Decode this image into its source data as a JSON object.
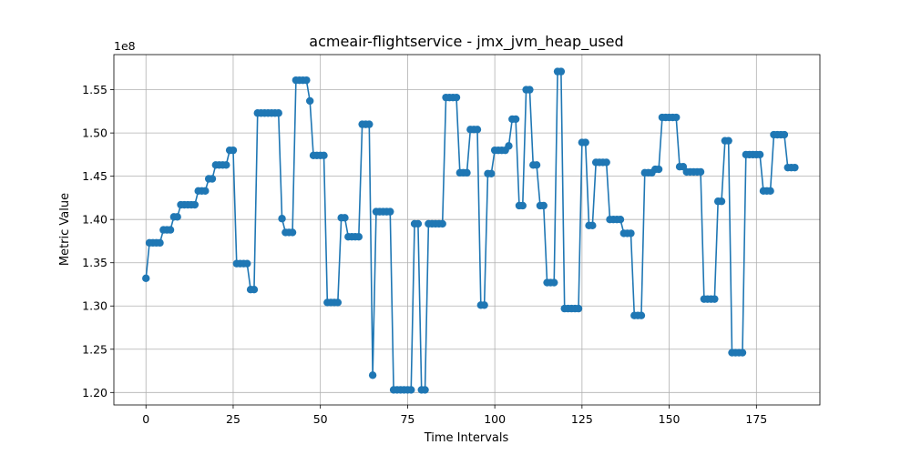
{
  "chart_data": {
    "type": "line",
    "title": "acmeair-flightservice - jmx_jvm_heap_used",
    "xlabel": "Time Intervals",
    "ylabel": "Metric Value",
    "offset_label": "1e8",
    "xlim": [
      -9.2,
      193.2
    ],
    "ylim": [
      1.1856,
      1.5906
    ],
    "xticks": [
      0,
      25,
      50,
      75,
      100,
      125,
      150,
      175
    ],
    "yticks": [
      1.2,
      1.25,
      1.3,
      1.35,
      1.4,
      1.45,
      1.5,
      1.55
    ],
    "ytick_labels": [
      "1.20",
      "1.25",
      "1.30",
      "1.35",
      "1.40",
      "1.45",
      "1.50",
      "1.55"
    ],
    "grid": true,
    "color": "#1f77b4",
    "series": [
      {
        "values": [
          1.332,
          1.373,
          1.373,
          1.373,
          1.373,
          1.388,
          1.388,
          1.388,
          1.403,
          1.403,
          1.417,
          1.417,
          1.417,
          1.417,
          1.417,
          1.433,
          1.433,
          1.433,
          1.447,
          1.447,
          1.463,
          1.463,
          1.463,
          1.463,
          1.48,
          1.48,
          1.349,
          1.349,
          1.349,
          1.349,
          1.319,
          1.319,
          1.523,
          1.523,
          1.523,
          1.523,
          1.523,
          1.523,
          1.523,
          1.401,
          1.385,
          1.385,
          1.385,
          1.561,
          1.561,
          1.561,
          1.561,
          1.537,
          1.474,
          1.474,
          1.474,
          1.474,
          1.304,
          1.304,
          1.304,
          1.304,
          1.402,
          1.402,
          1.38,
          1.38,
          1.38,
          1.38,
          1.51,
          1.51,
          1.51,
          1.22,
          1.409,
          1.409,
          1.409,
          1.409,
          1.409,
          1.203,
          1.203,
          1.203,
          1.203,
          1.203,
          1.203,
          1.395,
          1.395,
          1.203,
          1.203,
          1.395,
          1.395,
          1.395,
          1.395,
          1.395,
          1.541,
          1.541,
          1.541,
          1.541,
          1.454,
          1.454,
          1.454,
          1.504,
          1.504,
          1.504,
          1.301,
          1.301,
          1.453,
          1.453,
          1.48,
          1.48,
          1.48,
          1.48,
          1.485,
          1.516,
          1.516,
          1.416,
          1.416,
          1.55,
          1.55,
          1.463,
          1.463,
          1.416,
          1.416,
          1.327,
          1.327,
          1.327,
          1.571,
          1.571,
          1.297,
          1.297,
          1.297,
          1.297,
          1.297,
          1.489,
          1.489,
          1.393,
          1.393,
          1.466,
          1.466,
          1.466,
          1.466,
          1.4,
          1.4,
          1.4,
          1.4,
          1.384,
          1.384,
          1.384,
          1.289,
          1.289,
          1.289,
          1.454,
          1.454,
          1.454,
          1.458,
          1.458,
          1.518,
          1.518,
          1.518,
          1.518,
          1.518,
          1.461,
          1.461,
          1.455,
          1.455,
          1.455,
          1.455,
          1.455,
          1.308,
          1.308,
          1.308,
          1.308,
          1.421,
          1.421,
          1.491,
          1.491,
          1.246,
          1.246,
          1.246,
          1.246,
          1.475,
          1.475,
          1.475,
          1.475,
          1.475,
          1.433,
          1.433,
          1.433,
          1.498,
          1.498,
          1.498,
          1.498,
          1.46,
          1.46,
          1.46
        ]
      }
    ]
  }
}
